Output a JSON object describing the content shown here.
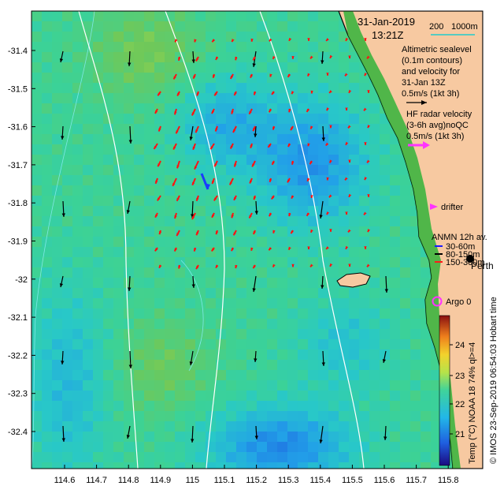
{
  "date": "31-Jan-2019",
  "time": "13:21Z",
  "scale_labels": {
    "left": "200",
    "right": "1000m"
  },
  "legend": {
    "altimetry_lines": [
      "Altimetric sealevel",
      "(0.1m contours)",
      "and velocity for",
      "31-Jan 13Z"
    ],
    "altimetry_scale": "0.5m/s (1kt 3h)",
    "hf_lines": [
      "HF radar velocity",
      "(3-6h avg)noQC"
    ],
    "hf_scale": "0.5m/s (1kt 3h)",
    "drifter": "drifter",
    "anmn_title": "ANMN 12h av.",
    "anmn_items": [
      {
        "label": "30-60m",
        "color": "#1a1aff"
      },
      {
        "label": "80-150m",
        "color": "#000000"
      },
      {
        "label": "150-300m",
        "color": "#ff1a1a"
      }
    ],
    "argo": "Argo 0",
    "city": "Perth"
  },
  "colorbar": {
    "ticks": [
      "24",
      "23",
      "22",
      "21"
    ],
    "label": "Temp  (°C) NOAA 18 74% ql>=4",
    "credit": "© IMOS 23-Sep-2019 06:54:03 Hobart time"
  },
  "axes": {
    "lat_ticks": [
      "-31.4",
      "-31.5",
      "-31.6",
      "-31.7",
      "-31.8",
      "-31.9",
      "-32",
      "-32.1",
      "-32.2",
      "-32.3",
      "-32.4"
    ],
    "lon_ticks": [
      "114.6",
      "114.7",
      "114.8",
      "114.9",
      "115",
      "115.1",
      "115.2",
      "115.3",
      "115.4",
      "115.5",
      "115.6",
      "115.7",
      "115.8"
    ]
  },
  "colors": {
    "land": "#f7c9a1",
    "isobath": "#ffffff",
    "alt_arrow": "#000000",
    "hf_arrow": "#ff1111",
    "hf_legend_arrow": "#ff33ff",
    "depth_scale": "#22cccc"
  }
}
